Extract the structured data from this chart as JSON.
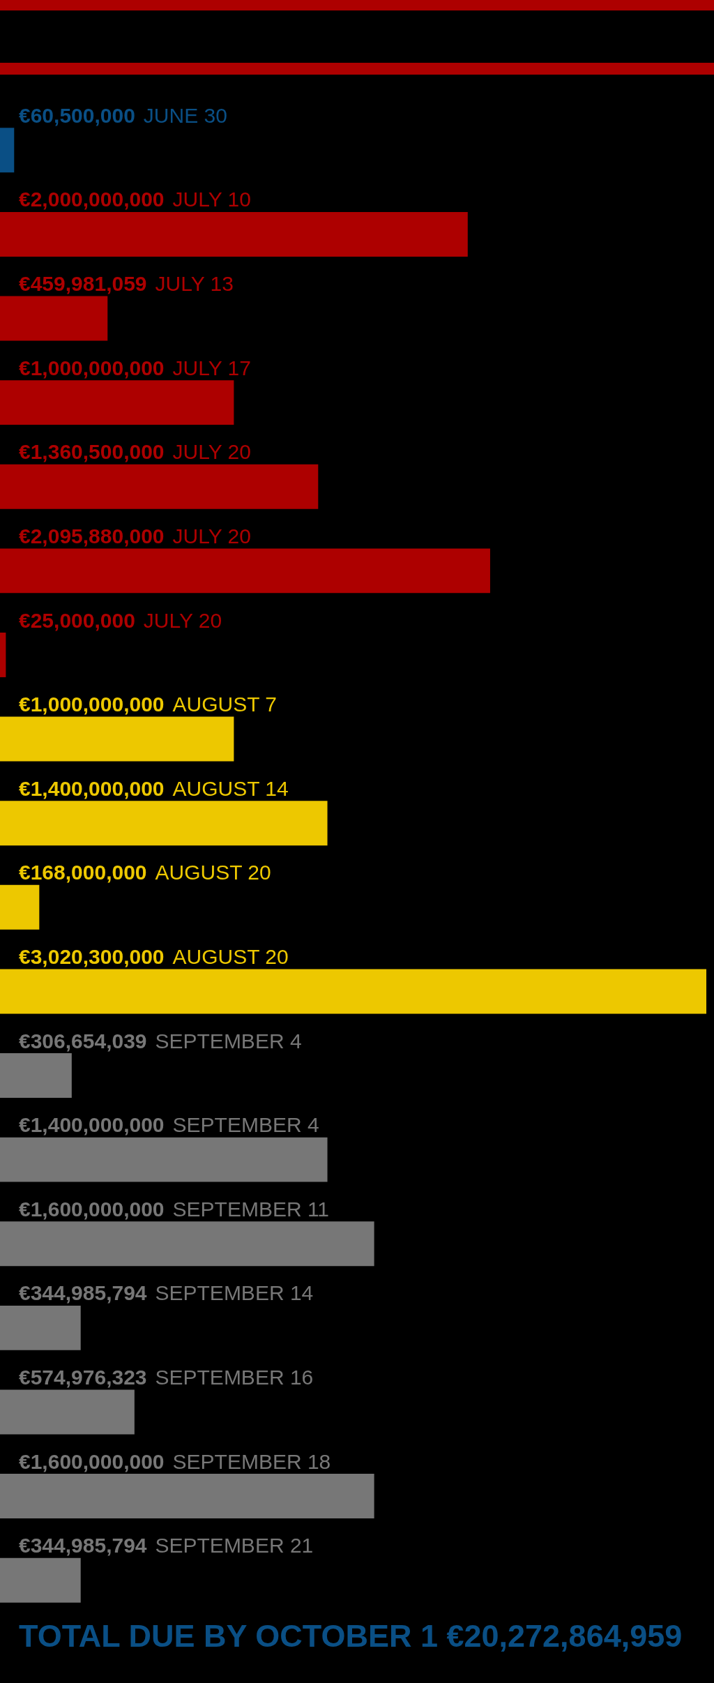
{
  "chart_data": {
    "type": "bar",
    "orientation": "horizontal",
    "tick_labels": "y",
    "categories": [
      "JUNE 30",
      "JULY 10",
      "JULY 13",
      "JULY 17",
      "JULY 20",
      "JULY 20",
      "JULY 20",
      "AUGUST 7",
      "AUGUST 14",
      "AUGUST 20",
      "AUGUST 20",
      "SEPTEMBER 4",
      "SEPTEMBER 4",
      "SEPTEMBER 11",
      "SEPTEMBER 14",
      "SEPTEMBER 16",
      "SEPTEMBER 18",
      "SEPTEMBER 21"
    ],
    "values": [
      60500000,
      2000000000,
      459981059,
      1000000000,
      1360500000,
      2095880000,
      25000000,
      1000000000,
      1400000000,
      168000000,
      3020300000,
      306654039,
      1400000000,
      1600000000,
      344985794,
      574976323,
      1600000000,
      344985794
    ],
    "value_labels": [
      "€60,500,000",
      "€2,000,000,000",
      "€459,981,059",
      "€1,000,000,000",
      "€1,360,500,000",
      "€2,095,880,000",
      "€25,000,000",
      "€1,000,000,000",
      "€1,400,000,000",
      "€168,000,000",
      "€3,020,300,000",
      "€306,654,039",
      "€1,400,000,000",
      "€1,600,000,000",
      "€344,985,794",
      "€574,976,323",
      "€1,600,000,000",
      "€344,985,794"
    ],
    "colors": [
      "#0a4f85",
      "#ad0000",
      "#ad0000",
      "#ad0000",
      "#ad0000",
      "#ad0000",
      "#ad0000",
      "#edc800",
      "#edc800",
      "#edc800",
      "#edc800",
      "#777777",
      "#777777",
      "#777777",
      "#777777",
      "#777777",
      "#777777",
      "#777777"
    ],
    "annotations": [
      "TOTAL DUE BY OCTOBER 1 €20,272,864,959"
    ]
  }
}
